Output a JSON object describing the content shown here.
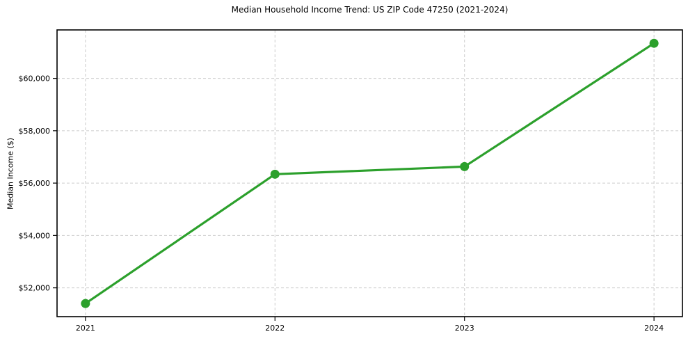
{
  "chart_data": {
    "type": "line",
    "title": "Median Household Income Trend: US ZIP Code 47250 (2021-2024)",
    "xlabel": "",
    "ylabel": "Median Income ($)",
    "x": [
      2021,
      2022,
      2023,
      2024
    ],
    "x_tick_labels": [
      "2021",
      "2022",
      "2023",
      "2024"
    ],
    "values": [
      51400,
      56340,
      56630,
      61340
    ],
    "y_tick_values": [
      52000,
      54000,
      56000,
      58000,
      60000
    ],
    "y_tick_labels": [
      "$52,000",
      "$54,000",
      "$56,000",
      "$58,000",
      "$60,000"
    ],
    "xlim": [
      2020.85,
      2024.15
    ],
    "ylim": [
      50900,
      61850
    ],
    "grid": true,
    "grid_style": "dashed",
    "legend_position": "none",
    "colors": {
      "line": "#2ca02c",
      "marker": "#2ca02c",
      "grid": "#cccccc",
      "spine": "#000000",
      "text": "#000000",
      "background": "#ffffff"
    }
  }
}
